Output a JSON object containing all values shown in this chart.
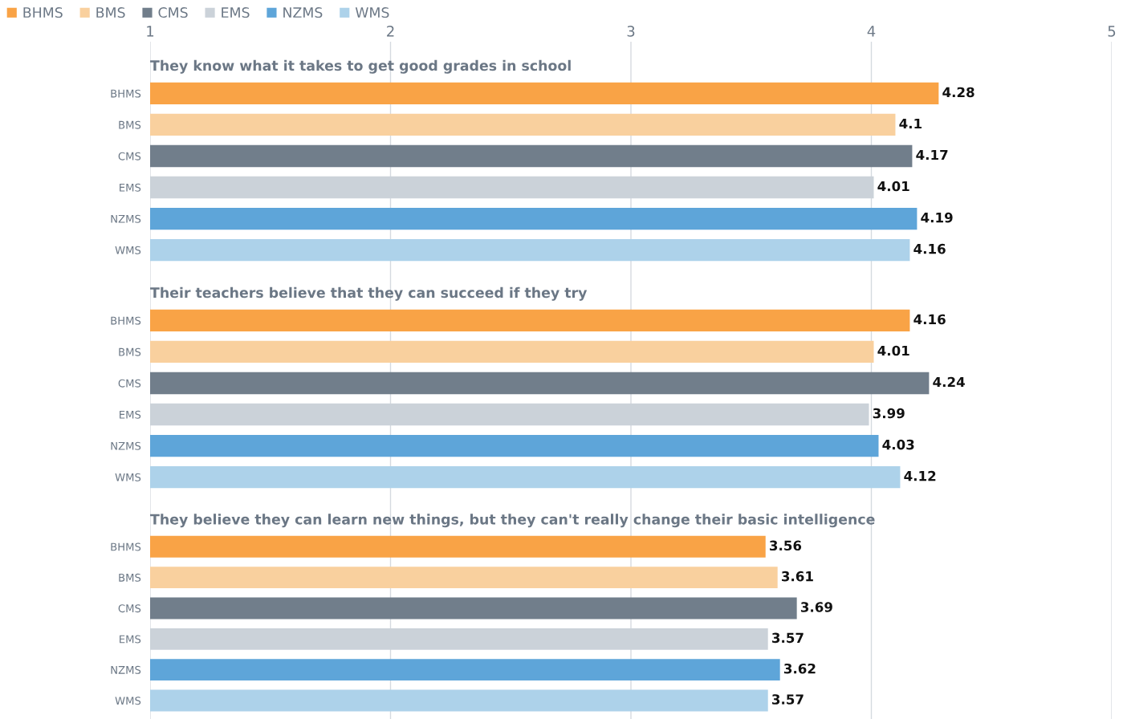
{
  "chart_data": [
    {
      "type": "bar",
      "orientation": "horizontal",
      "title": "They know what it takes to get good grades in school",
      "categories": [
        "BHMS",
        "BMS",
        "CMS",
        "EMS",
        "NZMS",
        "WMS"
      ],
      "series": [
        {
          "name": "BHMS",
          "color": "#f9a346",
          "values": [
            4.28,
            null,
            null,
            null,
            null,
            null
          ]
        },
        {
          "name": "BMS",
          "color": "#f9d09e",
          "values": [
            null,
            4.1,
            null,
            null,
            null,
            null
          ]
        },
        {
          "name": "CMS",
          "color": "#717e8b",
          "values": [
            null,
            null,
            4.17,
            null,
            null,
            null
          ]
        },
        {
          "name": "EMS",
          "color": "#cbd2d9",
          "values": [
            null,
            null,
            null,
            4.01,
            null,
            null
          ]
        },
        {
          "name": "NZMS",
          "color": "#5ea5d9",
          "values": [
            null,
            null,
            null,
            null,
            4.19,
            null
          ]
        },
        {
          "name": "WMS",
          "color": "#add2ea",
          "values": [
            null,
            null,
            null,
            null,
            null,
            4.16
          ]
        }
      ],
      "xlim": [
        1,
        5
      ],
      "xticks": [
        1,
        2,
        3,
        4,
        5
      ],
      "grid": "x",
      "data_labels": true,
      "legend": "top left"
    },
    {
      "type": "bar",
      "orientation": "horizontal",
      "title": "Their teachers believe that they can succeed if they try",
      "categories": [
        "BHMS",
        "BMS",
        "CMS",
        "EMS",
        "NZMS",
        "WMS"
      ],
      "values": [
        4.16,
        4.01,
        4.24,
        3.99,
        4.03,
        4.12
      ],
      "colors": [
        "#f9a346",
        "#f9d09e",
        "#717e8b",
        "#cbd2d9",
        "#5ea5d9",
        "#add2ea"
      ],
      "xlim": [
        1,
        5
      ],
      "xticks": [
        1,
        2,
        3,
        4,
        5
      ],
      "grid": "x",
      "data_labels": true,
      "tick_labels": "y"
    },
    {
      "type": "bar",
      "orientation": "horizontal",
      "title": "They believe they can learn new things, but they can't really change their basic intelligence",
      "categories": [
        "BHMS",
        "BMS",
        "CMS",
        "EMS",
        "NZMS",
        "WMS"
      ],
      "values": [
        3.56,
        3.61,
        3.69,
        3.57,
        3.62,
        3.57
      ],
      "colors": [
        "#f9a346",
        "#f9d09e",
        "#717e8b",
        "#cbd2d9",
        "#5ea5d9",
        "#add2ea"
      ],
      "xlim": [
        1,
        5
      ],
      "xticks": [
        1,
        2,
        3,
        4,
        5
      ],
      "grid": "x",
      "data_labels": true,
      "tick_labels": "y"
    }
  ]
}
